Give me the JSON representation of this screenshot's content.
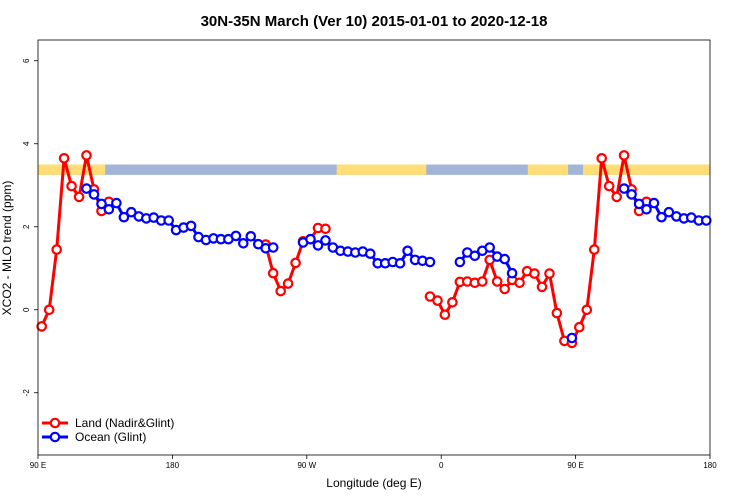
{
  "chart_data": {
    "type": "line",
    "title": "30N-35N March (Ver 10)   2015-01-01 to 2020-12-18",
    "xlabel": "Longitude (deg E)",
    "ylabel": "XCO2 - MLO trend (ppm)",
    "xlim": [
      90,
      540
    ],
    "ylim": [
      -3.5,
      6.5
    ],
    "x_ticks": [
      {
        "value": 90,
        "label": "90 E"
      },
      {
        "value": 180,
        "label": "180"
      },
      {
        "value": 270,
        "label": "90 W"
      },
      {
        "value": 360,
        "label": "0"
      },
      {
        "value": 450,
        "label": "90 E"
      },
      {
        "value": 540,
        "label": "180"
      }
    ],
    "y_ticks": [
      {
        "value": -2,
        "label": "-2"
      },
      {
        "value": 0,
        "label": "0"
      },
      {
        "value": 2,
        "label": "2"
      },
      {
        "value": 4,
        "label": "4"
      },
      {
        "value": 6,
        "label": "6"
      }
    ],
    "grid": false,
    "legend_position": "bottom-left",
    "land_ocean_strip": {
      "y_range": [
        3.25,
        3.5
      ],
      "land_color": "#ffdd77",
      "ocean_color": "#a2b5d6",
      "land_intervals": [
        [
          90,
          135
        ],
        [
          290,
          350
        ],
        [
          418,
          445
        ],
        [
          455,
          540
        ]
      ]
    },
    "series": [
      {
        "name": "Land (Nadir&Glint)",
        "color": "#ff0000",
        "segments": [
          [
            [
              92.5,
              -0.4
            ],
            [
              97.5,
              0.0
            ],
            [
              102.5,
              1.45
            ],
            [
              107.5,
              3.65
            ],
            [
              112.5,
              2.98
            ],
            [
              117.5,
              2.72
            ],
            [
              122.5,
              3.72
            ],
            [
              127.5,
              2.9
            ],
            [
              132.5,
              2.38
            ],
            [
              137.5,
              2.6
            ]
          ],
          [
            [
              242.5,
              1.57
            ],
            [
              247.5,
              0.88
            ],
            [
              252.5,
              0.45
            ],
            [
              257.5,
              0.63
            ],
            [
              262.5,
              1.13
            ],
            [
              267.5,
              1.65
            ],
            [
              272.5,
              1.7
            ],
            [
              277.5,
              1.97
            ],
            [
              282.5,
              1.95
            ]
          ],
          [
            [
              352.5,
              0.32
            ],
            [
              357.5,
              0.22
            ],
            [
              362.5,
              -0.12
            ],
            [
              367.5,
              0.18
            ],
            [
              372.5,
              0.67
            ],
            [
              377.5,
              0.68
            ],
            [
              382.5,
              0.65
            ],
            [
              387.5,
              0.68
            ],
            [
              392.5,
              1.2
            ],
            [
              397.5,
              0.68
            ],
            [
              402.5,
              0.5
            ],
            [
              407.5,
              0.72
            ],
            [
              412.5,
              0.65
            ],
            [
              417.5,
              0.93
            ],
            [
              422.5,
              0.87
            ],
            [
              427.5,
              0.55
            ],
            [
              432.5,
              0.87
            ],
            [
              437.5,
              -0.08
            ],
            [
              442.5,
              -0.75
            ],
            [
              447.5,
              -0.8
            ],
            [
              452.5,
              -0.42
            ],
            [
              457.5,
              0.0
            ],
            [
              462.5,
              1.45
            ],
            [
              467.5,
              3.65
            ],
            [
              472.5,
              2.98
            ],
            [
              477.5,
              2.72
            ],
            [
              482.5,
              3.72
            ],
            [
              487.5,
              2.9
            ],
            [
              492.5,
              2.38
            ],
            [
              497.5,
              2.6
            ]
          ]
        ]
      },
      {
        "name": "Ocean (Glint)",
        "color": "#0000ff",
        "segments": [
          [
            [
              122.5,
              2.92
            ],
            [
              127.5,
              2.78
            ],
            [
              132.5,
              2.55
            ],
            [
              137.5,
              2.42
            ],
            [
              142.5,
              2.57
            ],
            [
              147.5,
              2.23
            ],
            [
              152.5,
              2.35
            ],
            [
              157.5,
              2.25
            ],
            [
              162.5,
              2.2
            ],
            [
              167.5,
              2.22
            ],
            [
              172.5,
              2.15
            ],
            [
              177.5,
              2.15
            ],
            [
              182.5,
              1.92
            ],
            [
              187.5,
              1.98
            ],
            [
              192.5,
              2.02
            ],
            [
              197.5,
              1.75
            ],
            [
              202.5,
              1.68
            ],
            [
              207.5,
              1.72
            ],
            [
              212.5,
              1.7
            ],
            [
              217.5,
              1.7
            ],
            [
              222.5,
              1.78
            ],
            [
              227.5,
              1.6
            ],
            [
              232.5,
              1.77
            ],
            [
              237.5,
              1.58
            ],
            [
              242.5,
              1.48
            ],
            [
              247.5,
              1.5
            ]
          ],
          [
            [
              267.5,
              1.62
            ],
            [
              272.5,
              1.7
            ],
            [
              277.5,
              1.55
            ],
            [
              282.5,
              1.67
            ],
            [
              287.5,
              1.5
            ],
            [
              292.5,
              1.42
            ],
            [
              297.5,
              1.4
            ],
            [
              302.5,
              1.38
            ],
            [
              307.5,
              1.4
            ],
            [
              312.5,
              1.35
            ],
            [
              317.5,
              1.12
            ],
            [
              322.5,
              1.12
            ],
            [
              327.5,
              1.15
            ],
            [
              332.5,
              1.12
            ],
            [
              337.5,
              1.42
            ],
            [
              342.5,
              1.2
            ],
            [
              347.5,
              1.18
            ],
            [
              352.5,
              1.15
            ]
          ],
          [
            [
              372.5,
              1.15
            ],
            [
              377.5,
              1.38
            ],
            [
              382.5,
              1.3
            ],
            [
              387.5,
              1.42
            ],
            [
              392.5,
              1.5
            ],
            [
              397.5,
              1.28
            ],
            [
              402.5,
              1.22
            ],
            [
              407.5,
              0.88
            ]
          ],
          [
            [
              447.5,
              -0.68
            ]
          ],
          [
            [
              482.5,
              2.92
            ],
            [
              487.5,
              2.78
            ],
            [
              492.5,
              2.55
            ],
            [
              497.5,
              2.42
            ],
            [
              502.5,
              2.57
            ],
            [
              507.5,
              2.23
            ],
            [
              512.5,
              2.35
            ],
            [
              517.5,
              2.25
            ],
            [
              522.5,
              2.2
            ],
            [
              527.5,
              2.22
            ],
            [
              532.5,
              2.15
            ],
            [
              537.5,
              2.15
            ]
          ]
        ]
      }
    ]
  }
}
